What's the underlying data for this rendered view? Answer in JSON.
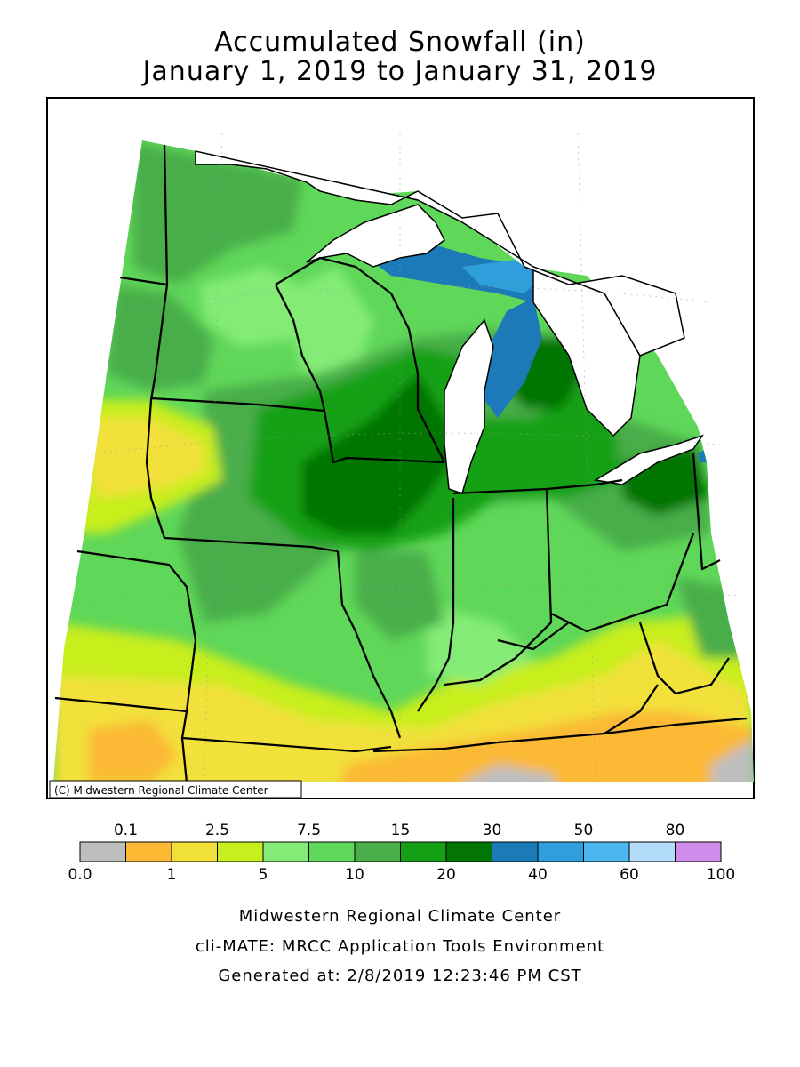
{
  "title": {
    "line1": "Accumulated Snowfall (in)",
    "line2": "January 1, 2019 to January 31, 2019"
  },
  "map": {
    "copyright": "(C) Midwestern Regional Climate Center"
  },
  "legend": {
    "top_labels": [
      "0.1",
      "2.5",
      "7.5",
      "15",
      "30",
      "50",
      "80"
    ],
    "bottom_labels": [
      "0.0",
      "1",
      "5",
      "10",
      "20",
      "40",
      "60",
      "100"
    ],
    "bins": [
      {
        "color": "#bebebe"
      },
      {
        "color": "#fbb934"
      },
      {
        "color": "#f2e03a"
      },
      {
        "color": "#c8ee1e"
      },
      {
        "color": "#84ec76"
      },
      {
        "color": "#5fd759"
      },
      {
        "color": "#4aae4a"
      },
      {
        "color": "#14a014"
      },
      {
        "color": "#037503"
      },
      {
        "color": "#1c7ab8"
      },
      {
        "color": "#2f9fdc"
      },
      {
        "color": "#4cb6ef"
      },
      {
        "color": "#b2dcfa"
      },
      {
        "color": "#d08ceb"
      }
    ]
  },
  "footer": {
    "line1": "Midwestern Regional Climate Center",
    "line2": "cli-MATE: MRCC Application Tools Environment",
    "line3": "Generated at: 2/8/2019 12:23:46 PM CST"
  }
}
